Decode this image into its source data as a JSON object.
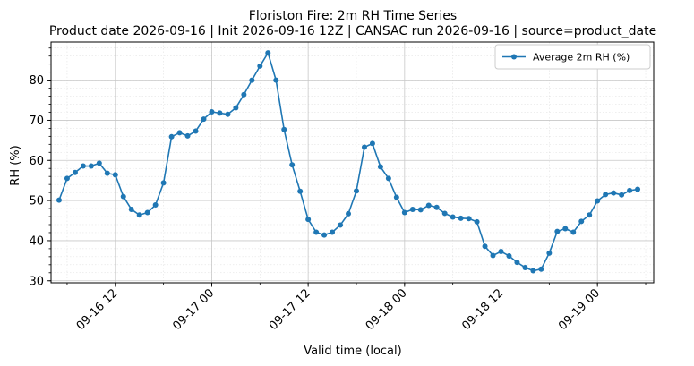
{
  "chart_data": {
    "type": "line",
    "title": "Floriston Fire: 2m RH Time Series",
    "subtitle": "Product date 2026-09-16 | Init 2026-09-16 12Z | CANSAC run 2026-09-16 | source=product_date",
    "xlabel": "Valid time (local)",
    "ylabel": "RH (%)",
    "x_start": "2026-09-16 05:00",
    "x_step_hours": 1,
    "xlim": [
      "2026-09-16 04:00",
      "2026-09-19 07:00"
    ],
    "ylim": [
      29.5,
      89.5
    ],
    "y_ticks": [
      30,
      40,
      50,
      60,
      70,
      80
    ],
    "x_ticks": [
      {
        "t": "2026-09-16 12:00",
        "label": "09-16 12"
      },
      {
        "t": "2026-09-17 00:00",
        "label": "09-17 00"
      },
      {
        "t": "2026-09-17 12:00",
        "label": "09-17 12"
      },
      {
        "t": "2026-09-18 00:00",
        "label": "09-18 00"
      },
      {
        "t": "2026-09-18 12:00",
        "label": "09-18 12"
      },
      {
        "t": "2026-09-19 00:00",
        "label": "09-19 00"
      }
    ],
    "grid": true,
    "legend_position": "upper right",
    "series": [
      {
        "name": "Average 2m RH (%)",
        "color": "#1f77b4",
        "values": [
          50.1,
          55.5,
          57.0,
          58.6,
          58.6,
          59.3,
          56.8,
          56.4,
          51.0,
          47.8,
          46.4,
          47.0,
          48.9,
          54.4,
          65.9,
          66.9,
          66.1,
          67.3,
          70.3,
          72.1,
          71.8,
          71.5,
          73.1,
          76.4,
          80.0,
          83.5,
          86.8,
          80.0,
          67.7,
          58.9,
          52.3,
          45.3,
          42.1,
          41.4,
          42.1,
          43.9,
          46.7,
          52.4,
          63.3,
          64.2,
          58.4,
          55.5,
          50.8,
          47.0,
          47.8,
          47.7,
          48.8,
          48.3,
          46.8,
          45.9,
          45.6,
          45.5,
          44.7,
          38.6,
          36.3,
          37.3,
          36.2,
          34.6,
          33.3,
          32.5,
          32.9,
          36.9,
          42.3,
          43.0,
          42.1,
          44.8,
          46.4,
          49.9,
          51.5,
          51.9,
          51.4,
          52.5,
          52.8
        ]
      }
    ]
  }
}
